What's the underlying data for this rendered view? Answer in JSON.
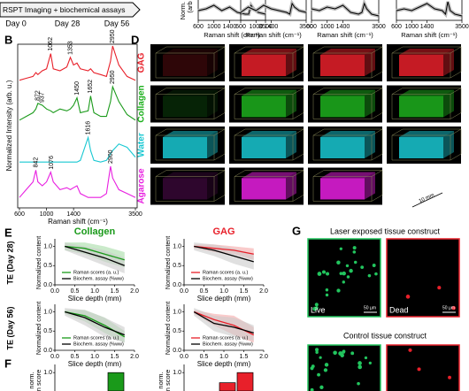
{
  "timeline": {
    "label": "RSPT Imaging + biochemical assays",
    "days": [
      "Day 0",
      "Day 28",
      "Day 56"
    ]
  },
  "top_spectra": {
    "y_label": [
      "Norm. In",
      "(arb"
    ],
    "x_label": "Raman shift (cm⁻¹)",
    "x": [
      600,
      800,
      1000,
      1200,
      1400,
      1600,
      1800,
      2800,
      2900,
      3000,
      3200,
      3500
    ],
    "xticks": [
      600,
      1000,
      1400,
      3500
    ],
    "ylim": [
      0,
      1
    ],
    "color": "#000000",
    "band_color": "#bbbbbb",
    "panels": [
      [
        0.5,
        0.6,
        0.8,
        0.5,
        0.7,
        0.4,
        0.3,
        0.3,
        0.8,
        0.6,
        0.4,
        0.3
      ],
      [
        0.4,
        0.7,
        0.5,
        0.8,
        0.6,
        0.5,
        0.4,
        0.3,
        0.9,
        0.7,
        0.5,
        0.4
      ],
      [
        0.6,
        0.5,
        0.7,
        0.6,
        0.8,
        0.4,
        0.3,
        0.4,
        0.9,
        0.6,
        0.3,
        0.2
      ],
      [
        0.5,
        0.6,
        0.5,
        0.7,
        0.9,
        0.6,
        0.5,
        0.3,
        1.0,
        0.5,
        0.3,
        0.2
      ]
    ]
  },
  "panel_b": {
    "label": "B",
    "y_label": "Normalized Intensity (arb. u.)",
    "x_label": "Raman shift (cm⁻¹)",
    "x": [
      600,
      700,
      800,
      842,
      872,
      937,
      1000,
      1062,
      1100,
      1200,
      1300,
      1353,
      1400,
      1450,
      1500,
      1616,
      1652,
      1700,
      1800,
      2800,
      2900,
      2950,
      3100,
      3300,
      3500
    ],
    "xticks": [
      600,
      1000,
      1400,
      3500
    ],
    "ylim": [
      0,
      1
    ],
    "spectra": [
      {
        "color": "#e8202a",
        "peaks": [
          1062,
          1353,
          2950
        ],
        "values": [
          0.1,
          0.15,
          0.2,
          0.3,
          0.25,
          0.35,
          0.4,
          0.8,
          0.4,
          0.35,
          0.45,
          0.7,
          0.5,
          0.55,
          0.4,
          0.35,
          0.4,
          0.3,
          0.25,
          0.2,
          0.6,
          1.0,
          0.5,
          0.2,
          0.1
        ]
      },
      {
        "color": "#1a9a1a",
        "peaks": [
          872,
          937,
          1450,
          1652,
          2950
        ],
        "values": [
          0.1,
          0.2,
          0.3,
          0.4,
          0.55,
          0.5,
          0.4,
          0.35,
          0.3,
          0.4,
          0.35,
          0.4,
          0.5,
          0.7,
          0.3,
          0.35,
          0.75,
          0.3,
          0.2,
          0.2,
          0.6,
          1.0,
          0.6,
          0.25,
          0.1
        ]
      },
      {
        "color": "#19c8d2",
        "peaks": [
          1616
        ],
        "values": [
          0.05,
          0.05,
          0.05,
          0.05,
          0.05,
          0.05,
          0.05,
          0.05,
          0.05,
          0.05,
          0.05,
          0.05,
          0.05,
          0.05,
          0.1,
          0.8,
          0.4,
          0.1,
          0.05,
          0.1,
          0.3,
          0.4,
          0.6,
          0.5,
          0.2
        ]
      },
      {
        "color": "#e81ee0",
        "peaks": [
          842,
          1076,
          2900
        ],
        "values": [
          0.2,
          0.4,
          0.6,
          0.9,
          0.6,
          0.5,
          0.6,
          0.85,
          0.6,
          0.4,
          0.45,
          0.4,
          0.45,
          0.5,
          0.3,
          0.2,
          0.2,
          0.2,
          0.2,
          0.3,
          1.0,
          0.7,
          0.4,
          0.3,
          0.2
        ]
      }
    ]
  },
  "panel_d": {
    "label": "D",
    "rows": [
      {
        "label": "GAG",
        "color": "#e8202a"
      },
      {
        "label": "Collagen",
        "color": "#1db01d"
      },
      {
        "label": "Water",
        "color": "#19c8d2"
      },
      {
        "label": "Agarose",
        "color": "#e81ee0"
      }
    ],
    "scale_bar": "10 mm"
  },
  "panel_e": {
    "label": "E",
    "columns": [
      {
        "title": "Collagen",
        "color": "#1a9a1a",
        "band": "#a6dca6"
      },
      {
        "title": "GAG",
        "color": "#e8202a",
        "band": "#f5a8a8"
      }
    ],
    "rows": [
      "TE (Day 28)",
      "TE (Day 56)"
    ],
    "x_label": "Slice depth (mm)",
    "y_label": "Normalized content",
    "legend": [
      "Raman scores (a. u.)",
      "Biochem. assay (%ww)"
    ],
    "assay_color": "#000000",
    "assay_band": "#cccccc",
    "x": [
      0.25,
      0.75,
      1.25,
      1.75
    ],
    "xlim": [
      0,
      2
    ],
    "xticks": [
      {
        "value": 0,
        "label": "0.0"
      },
      0.5,
      {
        "value": 1,
        "label": "1.0"
      },
      1.5,
      {
        "value": 2,
        "label": "2.0"
      }
    ],
    "ylim": [
      0,
      1.15
    ],
    "yticks": [
      {
        "value": 0,
        "label": "0.0"
      },
      0.5,
      {
        "value": 1,
        "label": "1.0"
      }
    ],
    "plots": [
      [
        {
          "raman": [
            1.0,
            0.95,
            0.8,
            0.65
          ],
          "raman_err": [
            0.1,
            0.15,
            0.2,
            0.2
          ],
          "assay": [
            1.0,
            0.85,
            0.7,
            0.5
          ],
          "assay_err": [
            0.1,
            0.15,
            0.2,
            0.2
          ]
        },
        {
          "raman": [
            1.0,
            0.95,
            0.9,
            0.8
          ],
          "raman_err": [
            0.05,
            0.1,
            0.1,
            0.15
          ],
          "assay": [
            1.0,
            0.9,
            0.75,
            0.6
          ],
          "assay_err": [
            0.1,
            0.15,
            0.2,
            0.2
          ]
        }
      ],
      [
        {
          "raman": [
            1.0,
            0.9,
            0.65,
            0.35
          ],
          "raman_err": [
            0.05,
            0.15,
            0.2,
            0.15
          ],
          "assay": [
            1.0,
            0.85,
            0.6,
            0.4
          ],
          "assay_err": [
            0.1,
            0.2,
            0.25,
            0.2
          ]
        },
        {
          "raman": [
            1.0,
            0.8,
            0.65,
            0.4
          ],
          "raman_err": [
            0.05,
            0.15,
            0.25,
            0.2
          ],
          "assay": [
            1.0,
            0.7,
            0.6,
            0.45
          ],
          "assay_err": [
            0.1,
            0.2,
            0.25,
            0.2
          ]
        }
      ]
    ]
  },
  "panel_f": {
    "label": "F",
    "y_label": [
      "norm.",
      "n score"
    ],
    "ylim": [
      0.6,
      1.1
    ],
    "yticks": [
      {
        "value": 1,
        "label": "1.0"
      }
    ],
    "plots": [
      {
        "color": "#1a9a1a",
        "values": [
          1.0
        ]
      },
      {
        "color": "#e8202a",
        "values": [
          0.78,
          1.0
        ]
      }
    ]
  },
  "panel_g": {
    "label": "G",
    "groups": [
      {
        "title": "Laser exposed tissue construct"
      },
      {
        "title": "Control tissue construct"
      }
    ],
    "live": "Live",
    "dead": "Dead",
    "scale": "50 µm",
    "live_color": "#22c55e",
    "dead_color": "#e8202a"
  }
}
